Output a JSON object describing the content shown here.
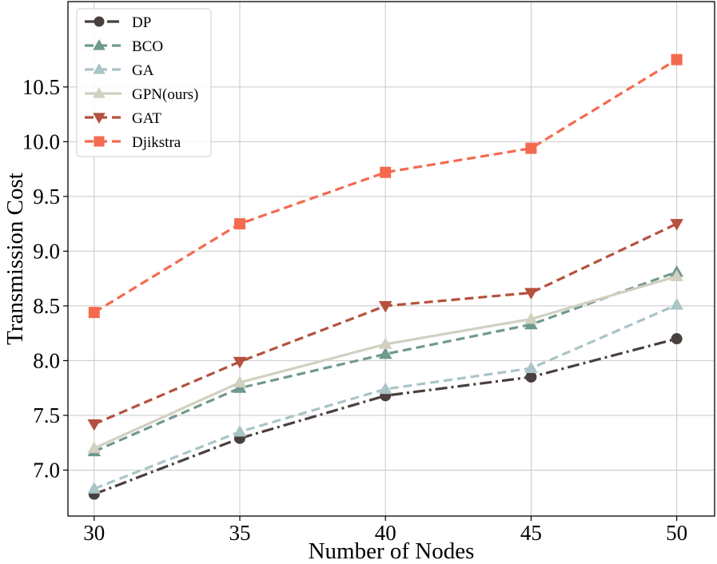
{
  "chart_data": {
    "type": "line",
    "title": "",
    "xlabel": "Number of Nodes",
    "ylabel": "Transmission Cost",
    "x": [
      30,
      35,
      40,
      45,
      50
    ],
    "xticks": [
      "30",
      "35",
      "40",
      "45",
      "50"
    ],
    "yticks": [
      "7.0",
      "7.5",
      "8.0",
      "8.5",
      "9.0",
      "9.5",
      "10.0",
      "10.5"
    ],
    "xlim": [
      29.1,
      51.3
    ],
    "ylim": [
      6.58,
      11.28
    ],
    "grid": true,
    "legend_position": "top-left",
    "series": [
      {
        "name": "DP",
        "values": [
          6.78,
          7.29,
          7.68,
          7.85,
          8.2
        ],
        "color": "#4a3f3f",
        "dash": "dashdot",
        "marker": "circle"
      },
      {
        "name": "BCO",
        "values": [
          7.17,
          7.75,
          8.06,
          8.33,
          8.81
        ],
        "color": "#6f9a8d",
        "dash": "dashed",
        "marker": "triangle-up"
      },
      {
        "name": "GA",
        "values": [
          6.83,
          7.35,
          7.74,
          7.93,
          8.51
        ],
        "color": "#aac4c7",
        "dash": "dashed",
        "marker": "triangle-up"
      },
      {
        "name": "GPN(ours)",
        "values": [
          7.2,
          7.8,
          8.15,
          8.38,
          8.77
        ],
        "color": "#d1d0c1",
        "dash": "solid",
        "marker": "triangle-up"
      },
      {
        "name": "GAT",
        "values": [
          7.42,
          7.99,
          8.5,
          8.62,
          9.25
        ],
        "color": "#b5513f",
        "dash": "dashed",
        "marker": "triangle-down"
      },
      {
        "name": "Djikstra",
        "values": [
          8.44,
          9.25,
          9.72,
          9.94,
          10.75
        ],
        "color": "#f46a4f",
        "dash": "dashed",
        "marker": "square"
      }
    ]
  }
}
